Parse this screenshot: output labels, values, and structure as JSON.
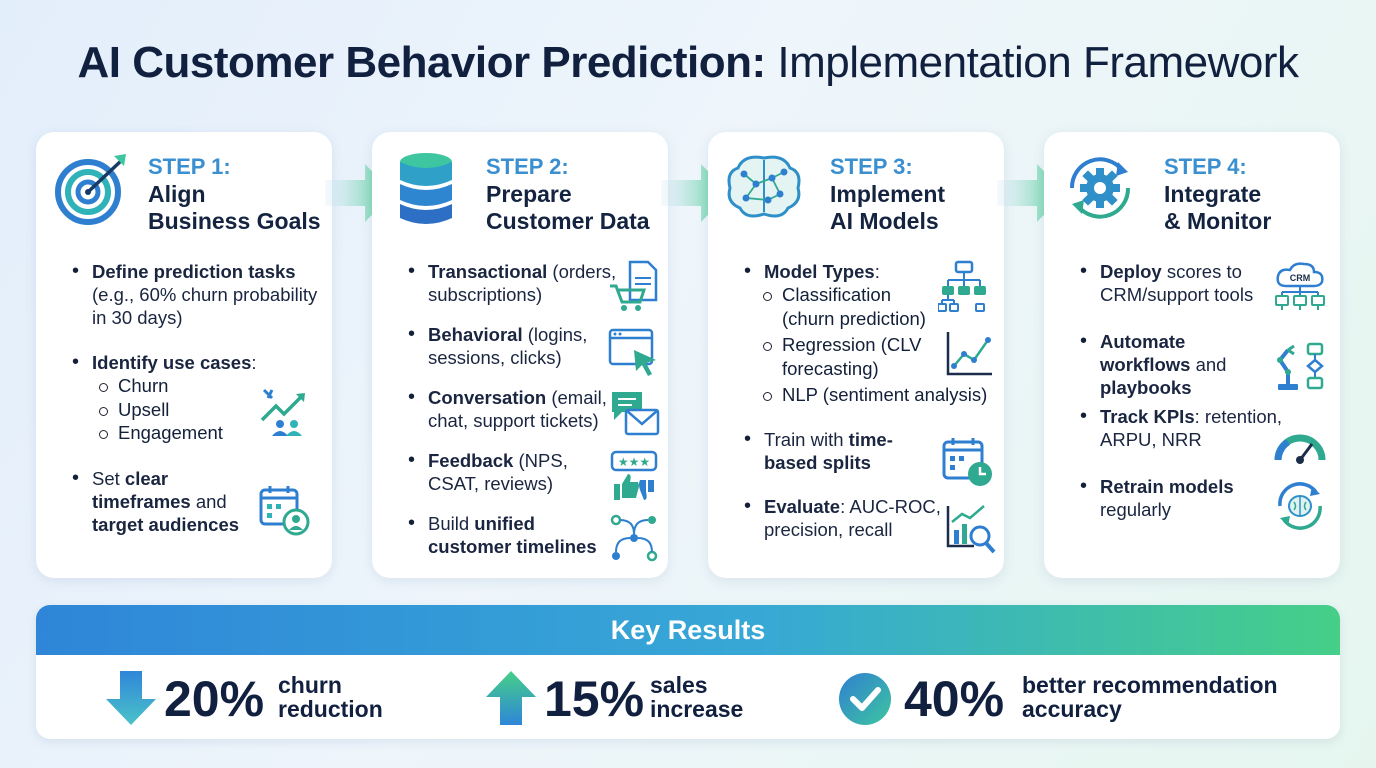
{
  "title": {
    "bold": "AI Customer Behavior Prediction:",
    "light": "Implementation Framework"
  },
  "colors": {
    "accent_blue": "#3a8fd0",
    "teal": "#26a69a",
    "green": "#45cf88",
    "dark": "#13203a"
  },
  "steps": [
    {
      "num": "STEP 1:",
      "title_line1": "Align",
      "title_line2": "Business Goals",
      "icon": "target-icon",
      "items": {
        "i1_bold": "Define prediction tasks",
        "i1_rest": "(e.g., 60% churn probability in 30 days)",
        "i2_bold": "Identify use cases",
        "i2_rest": ":",
        "subs": [
          "Churn",
          "Upsell",
          "Engagement"
        ],
        "i3_a": "Set ",
        "i3_b": "clear timeframes",
        "i3_c": " and ",
        "i3_d": "target audiences"
      }
    },
    {
      "num": "STEP 2:",
      "title_line1": "Prepare",
      "title_line2": "Customer Data",
      "icon": "database-icon",
      "items": {
        "i1_bold": "Transactional",
        "i1_rest": " (orders, subscriptions)",
        "i2_bold": "Behavioral",
        "i2_rest": " (logins, sessions, clicks)",
        "i3_bold": "Conversation",
        "i3_rest": " (email, chat, support tickets)",
        "i4_bold": "Feedback",
        "i4_rest": " (NPS, CSAT, reviews)",
        "i5_a": "Build ",
        "i5_b": "unified customer timelines"
      }
    },
    {
      "num": "STEP 3:",
      "title_line1": "Implement",
      "title_line2": "AI Models",
      "icon": "brain-network-icon",
      "items": {
        "i1_bold": "Model Types",
        "i1_rest": ":",
        "subs": [
          "Classification (churn prediction)",
          "Regression (CLV forecasting)",
          "NLP (sentiment analysis)"
        ],
        "i2_a": "Train with ",
        "i2_b": "time-based splits",
        "i3_bold": "Evaluate",
        "i3_rest": ": AUC-ROC, precision, recall"
      }
    },
    {
      "num": "STEP 4:",
      "title_line1": "Integrate",
      "title_line2": "& Monitor",
      "icon": "gear-cycle-icon",
      "items": {
        "i1_bold": "Deploy",
        "i1_rest": " scores to CRM/support tools",
        "i2_bold": "Automate workflows",
        "i2_mid": " and ",
        "i2_bold2": "playbooks",
        "i3_bold": "Track KPIs",
        "i3_rest": ": retention, ARPU, NRR",
        "i4_bold": "Retrain models",
        "i4_rest": " regularly",
        "crm_label": "CRM"
      }
    }
  ],
  "results": {
    "header": "Key Results",
    "metrics": [
      {
        "value": "20%",
        "label1": "churn",
        "label2": "reduction",
        "icon": "arrow-down-icon"
      },
      {
        "value": "15%",
        "label1": "sales",
        "label2": "increase",
        "icon": "arrow-up-icon"
      },
      {
        "value": "40%",
        "label1": "better recommendation",
        "label2": "accuracy",
        "icon": "check-circle-icon"
      }
    ]
  }
}
